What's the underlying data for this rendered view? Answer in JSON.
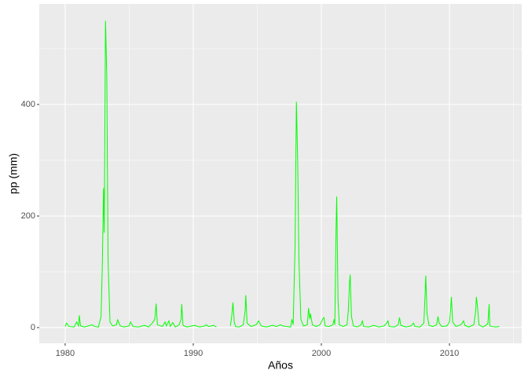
{
  "chart_data": {
    "type": "line",
    "x_label": "Años",
    "y_label": "pp (mm)",
    "x": [
      1980.0,
      1980.1,
      1980.3,
      1980.7,
      1980.9,
      1981.05,
      1981.1,
      1981.2,
      1981.5,
      1981.8,
      1982.1,
      1982.3,
      1982.6,
      1982.8,
      1982.9,
      1983.0,
      1983.05,
      1983.15,
      1983.25,
      1983.35,
      1983.5,
      1983.7,
      1984.0,
      1984.1,
      1984.3,
      1984.6,
      1985.0,
      1985.1,
      1985.3,
      1985.7,
      1986.2,
      1986.5,
      1986.8,
      1987.0,
      1987.1,
      1987.2,
      1987.6,
      1987.8,
      1987.9,
      1988.1,
      1988.2,
      1988.4,
      1988.6,
      1988.9,
      1989.05,
      1989.1,
      1989.2,
      1989.5,
      1989.9,
      1990.1,
      1990.5,
      1990.9,
      1991.0,
      1991.2,
      1991.6,
      1991.8,
      1992.4,
      1992.9,
      1993.0,
      1993.1,
      1993.2,
      1993.3,
      1993.6,
      1993.9,
      1994.05,
      1994.1,
      1994.2,
      1994.5,
      1994.9,
      1995.1,
      1995.3,
      1995.7,
      1996.2,
      1996.5,
      1996.8,
      1997.0,
      1997.3,
      1997.6,
      1997.7,
      1997.8,
      1997.95,
      1998.05,
      1998.15,
      1998.25,
      1998.4,
      1998.6,
      1998.9,
      1999.0,
      1999.1,
      1999.15,
      1999.3,
      1999.6,
      1999.9,
      2000.1,
      2000.2,
      2000.3,
      2000.6,
      2000.9,
      2001.0,
      2001.05,
      2001.15,
      2001.2,
      2001.3,
      2001.4,
      2001.7,
      2002.0,
      2002.1,
      2002.2,
      2002.25,
      2002.35,
      2002.5,
      2002.8,
      2003.1,
      2003.2,
      2003.3,
      2003.7,
      2004.1,
      2004.5,
      2004.9,
      2005.1,
      2005.2,
      2005.3,
      2005.7,
      2006.0,
      2006.1,
      2006.2,
      2006.6,
      2007.0,
      2007.2,
      2007.3,
      2007.7,
      2008.0,
      2008.1,
      2008.15,
      2008.25,
      2008.4,
      2008.7,
      2009.0,
      2009.1,
      2009.2,
      2009.4,
      2009.8,
      2010.0,
      2010.1,
      2010.15,
      2010.25,
      2010.5,
      2010.9,
      2011.1,
      2011.2,
      2011.5,
      2011.9,
      2012.05,
      2012.1,
      2012.2,
      2012.3,
      2012.6,
      2012.9,
      2013.0,
      2013.1,
      2013.15,
      2013.3,
      2013.6,
      2013.9
    ],
    "series": [
      {
        "color": "#00ff00",
        "values": [
          2,
          8,
          2,
          1,
          10,
          3,
          22,
          3,
          1,
          3,
          5,
          2,
          1,
          20,
          110,
          250,
          170,
          550,
          450,
          120,
          10,
          3,
          5,
          14,
          3,
          1,
          3,
          10,
          2,
          1,
          4,
          1,
          8,
          15,
          43,
          5,
          2,
          10,
          3,
          12,
          2,
          9,
          1,
          5,
          15,
          42,
          4,
          1,
          3,
          4,
          1,
          3,
          5,
          2,
          4,
          1,
          null,
          3,
          20,
          45,
          10,
          2,
          1,
          5,
          30,
          58,
          8,
          2,
          5,
          12,
          3,
          1,
          4,
          2,
          5,
          3,
          2,
          1,
          15,
          5,
          150,
          405,
          300,
          120,
          15,
          3,
          5,
          35,
          15,
          25,
          5,
          2,
          5,
          15,
          18,
          3,
          2,
          5,
          15,
          5,
          180,
          235,
          50,
          5,
          2,
          5,
          30,
          80,
          95,
          20,
          3,
          1,
          5,
          12,
          2,
          1,
          4,
          1,
          3,
          8,
          12,
          2,
          1,
          5,
          18,
          4,
          1,
          3,
          8,
          2,
          1,
          8,
          60,
          93,
          25,
          4,
          2,
          5,
          20,
          8,
          2,
          3,
          10,
          35,
          55,
          10,
          2,
          5,
          12,
          4,
          1,
          5,
          30,
          55,
          35,
          5,
          1,
          5,
          8,
          42,
          3,
          2,
          1,
          2
        ]
      }
    ],
    "xlim": [
      1977.98,
      2015.64
    ],
    "ylim": [
      -28.2,
      580.3
    ],
    "xticks": [
      1980,
      1990,
      2000,
      2010
    ],
    "yticks": [
      0,
      200,
      400
    ],
    "x_minor_breaks": [
      1985,
      1995,
      2005,
      2015
    ],
    "y_minor_breaks": [
      100,
      300,
      500
    ],
    "grid": true
  }
}
